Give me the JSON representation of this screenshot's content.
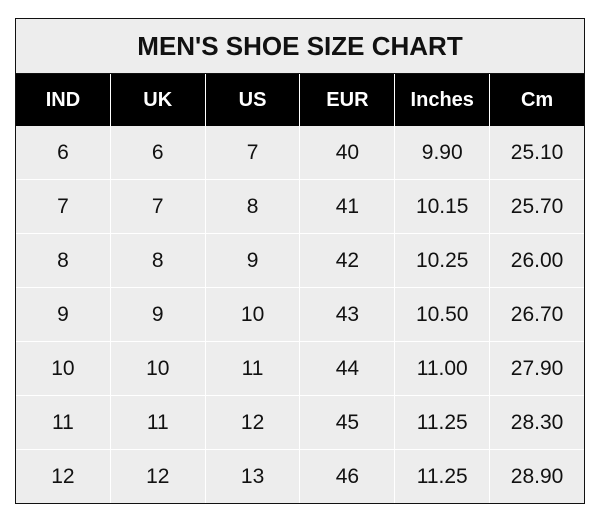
{
  "title": "MEN'S SHOE SIZE CHART",
  "headers": [
    "IND",
    "UK",
    "US",
    "EUR",
    "Inches",
    "Cm"
  ],
  "rows": [
    [
      "6",
      "6",
      "7",
      "40",
      "9.90",
      "25.10"
    ],
    [
      "7",
      "7",
      "8",
      "41",
      "10.15",
      "25.70"
    ],
    [
      "8",
      "8",
      "9",
      "42",
      "10.25",
      "26.00"
    ],
    [
      "9",
      "9",
      "10",
      "43",
      "10.50",
      "26.70"
    ],
    [
      "10",
      "10",
      "11",
      "44",
      "11.00",
      "27.90"
    ],
    [
      "11",
      "11",
      "12",
      "45",
      "11.25",
      "28.30"
    ],
    [
      "12",
      "12",
      "13",
      "46",
      "11.25",
      "28.90"
    ]
  ],
  "colors": {
    "header_bg": "#000000",
    "cell_bg": "#ededed",
    "grid": "#ffffff"
  }
}
